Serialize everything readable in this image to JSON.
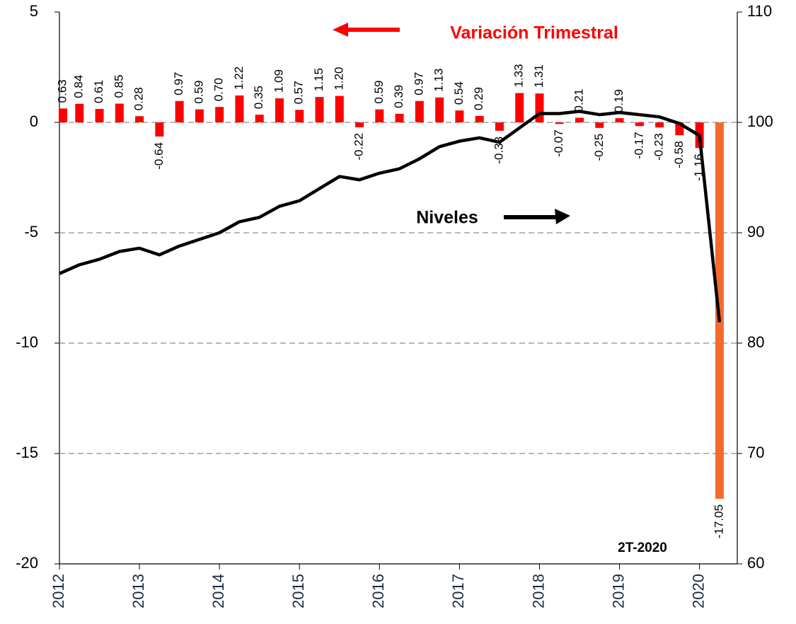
{
  "chart_data": {
    "type": "bar_line",
    "categories": [
      "2012",
      null,
      null,
      null,
      "2013",
      null,
      null,
      null,
      "2014",
      null,
      null,
      null,
      "2015",
      null,
      null,
      null,
      "2016",
      null,
      null,
      null,
      "2017",
      null,
      null,
      null,
      "2018",
      null,
      null,
      null,
      "2019",
      null,
      null,
      null,
      "2020",
      null
    ],
    "series": [
      {
        "name": "Variación Trimestral",
        "type": "bar",
        "color": "#ff0000",
        "colors": [
          "#ff0000",
          "#ff0000",
          "#ff0000",
          "#ff0000",
          "#ff0000",
          "#ff0000",
          "#ff0000",
          "#ff0000",
          "#ff0000",
          "#ff0000",
          "#ff0000",
          "#ff0000",
          "#ff0000",
          "#ff0000",
          "#ff0000",
          "#ff0000",
          "#ff0000",
          "#ff0000",
          "#ff0000",
          "#ff0000",
          "#ff0000",
          "#ff0000",
          "#ff0000",
          "#ff0000",
          "#ff0000",
          "#ff0000",
          "#ff0000",
          "#ff0000",
          "#ff0000",
          "#ff0000",
          "#ff0000",
          "#ff0000",
          "#ff0000",
          "#f26a2e"
        ],
        "values": [
          0.63,
          0.84,
          0.61,
          0.85,
          0.28,
          -0.64,
          0.97,
          0.59,
          0.7,
          1.22,
          0.35,
          1.09,
          0.57,
          1.15,
          1.2,
          -0.22,
          0.59,
          0.39,
          0.97,
          1.13,
          0.54,
          0.29,
          -0.38,
          1.33,
          1.31,
          -0.07,
          0.21,
          -0.25,
          0.19,
          -0.17,
          -0.23,
          -0.58,
          -1.16,
          -17.05
        ],
        "value_labels": [
          "0.63",
          "0.84",
          "0.61",
          "0.85",
          "0.28",
          "-0.64",
          "0.97",
          "0.59",
          "0.70",
          "1.22",
          "0.35",
          "1.09",
          "0.57",
          "1.15",
          "1.20",
          "-0.22",
          "0.59",
          "0.39",
          "0.97",
          "1.13",
          "0.54",
          "0.29",
          "-0.38",
          "1.33",
          "1.31",
          "-0.07",
          "0.21",
          "-0.25",
          "0.19",
          "-0.17",
          "-0.23",
          "-0.58",
          "-1.16",
          "-17.05"
        ]
      },
      {
        "name": "Niveles",
        "type": "line",
        "axis": "y2",
        "color": "#000000",
        "values": [
          86.3,
          87.1,
          87.6,
          88.3,
          88.6,
          88.0,
          88.8,
          89.4,
          90.0,
          91.0,
          91.4,
          92.4,
          92.9,
          94.0,
          95.1,
          94.8,
          95.4,
          95.8,
          96.7,
          97.8,
          98.3,
          98.6,
          98.2,
          99.5,
          100.8,
          100.8,
          101.0,
          100.7,
          100.9,
          100.7,
          100.5,
          99.9,
          98.8,
          81.9
        ]
      }
    ],
    "ylim": [
      -20,
      5
    ],
    "yticks": [
      -20,
      -15,
      -10,
      -5,
      0,
      5
    ],
    "y2lim": [
      60,
      110
    ],
    "y2ticks": [
      60,
      70,
      80,
      90,
      100,
      110
    ],
    "grid": true,
    "annotations": [
      "2T-2020"
    ]
  }
}
